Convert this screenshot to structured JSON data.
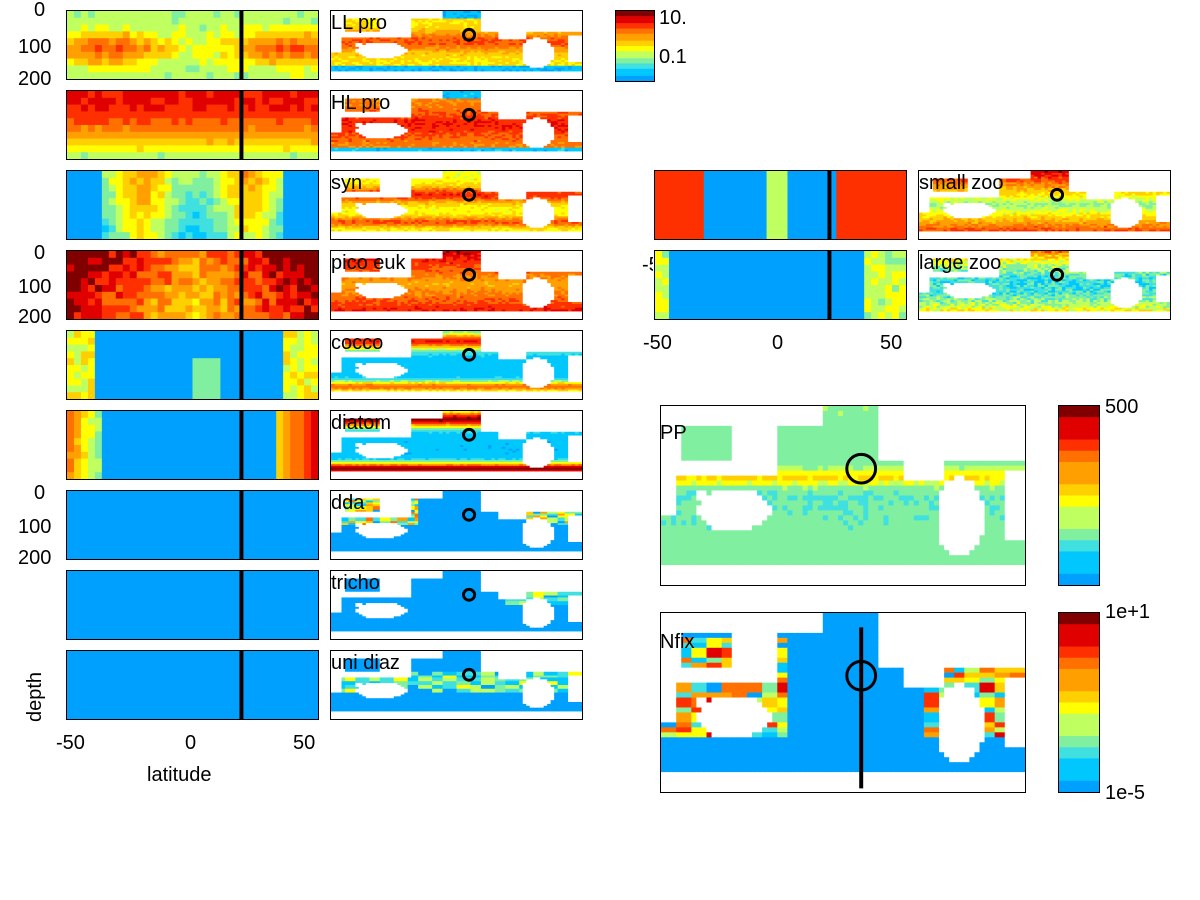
{
  "chart_data": {
    "type": "heatmap",
    "title": "",
    "xlabel": "latitude",
    "ylabel": "depth",
    "xticks": [
      "-50",
      "0",
      "50"
    ],
    "yticks": [
      "0",
      "100",
      "200"
    ],
    "map_colorbar_ticks": [
      "10.",
      "0.1"
    ],
    "pp_colorbar_ticks": [
      "500"
    ],
    "nfix_colorbar_ticks": [
      "1e+1",
      "1e-5"
    ],
    "partial_tick": "-5",
    "groups": [
      {
        "name": "LL pro"
      },
      {
        "name": "HL pro"
      },
      {
        "name": "syn"
      },
      {
        "name": "pico euk"
      },
      {
        "name": "cocco"
      },
      {
        "name": "diatom"
      },
      {
        "name": "dda"
      },
      {
        "name": "tricho"
      },
      {
        "name": "uni diaz"
      },
      {
        "name": "small zoo"
      },
      {
        "name": "large zoo"
      }
    ],
    "big_maps": [
      {
        "name": "PP"
      },
      {
        "name": "Nfix"
      }
    ],
    "colormap": [
      "#00a0ff",
      "#00c8ff",
      "#40e0e0",
      "#80f0a0",
      "#c0ff60",
      "#ffff00",
      "#ffd000",
      "#ffa000",
      "#ff7000",
      "#ff3000",
      "#e00000",
      "#800000"
    ]
  }
}
